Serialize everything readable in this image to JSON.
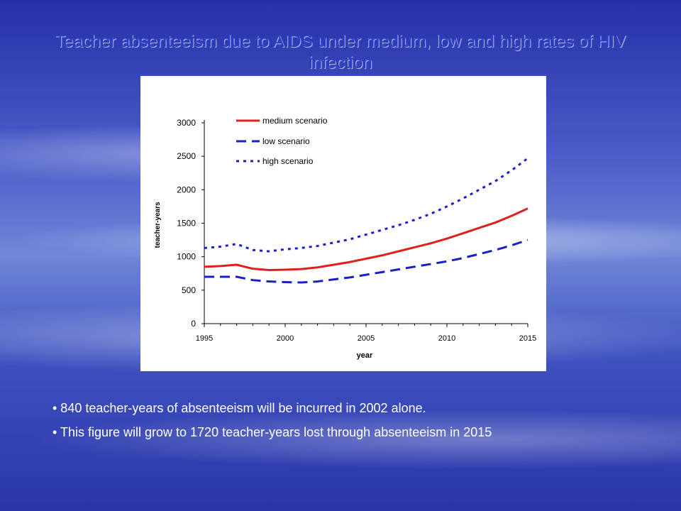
{
  "slide": {
    "title": "Teacher absenteeism due to AIDS under medium, low and high rates of HIV infection",
    "bullets": [
      "• 840 teacher-years of absenteeism will be incurred in 2002 alone.",
      "• This figure will grow to 1720 teacher-years lost through absenteeism in 2015"
    ]
  },
  "chart_data": {
    "type": "line",
    "title": "",
    "xlabel": "year",
    "ylabel": "teacher-years",
    "xlim": [
      1995,
      2015
    ],
    "ylim": [
      0,
      3000
    ],
    "x_ticks": [
      1995,
      2000,
      2005,
      2010,
      2015
    ],
    "y_ticks": [
      0,
      500,
      1000,
      1500,
      2000,
      2500,
      3000
    ],
    "legend_position": "top-left",
    "x": [
      1995,
      1996,
      1997,
      1998,
      1999,
      2000,
      2001,
      2002,
      2003,
      2004,
      2005,
      2006,
      2007,
      2008,
      2009,
      2010,
      2011,
      2012,
      2013,
      2014,
      2015
    ],
    "series": [
      {
        "name": "medium scenario",
        "color": "#e0201c",
        "dash": "solid",
        "values": [
          850,
          860,
          880,
          820,
          800,
          805,
          815,
          840,
          880,
          920,
          970,
          1020,
          1080,
          1140,
          1200,
          1270,
          1350,
          1430,
          1510,
          1610,
          1720
        ]
      },
      {
        "name": "low scenario",
        "color": "#1a1fc8",
        "dash": "dashed",
        "values": [
          700,
          700,
          700,
          650,
          630,
          620,
          615,
          630,
          660,
          690,
          730,
          770,
          810,
          850,
          890,
          930,
          980,
          1040,
          1100,
          1170,
          1250
        ]
      },
      {
        "name": "high scenario",
        "color": "#1a1fc8",
        "dash": "dotted",
        "values": [
          1130,
          1150,
          1190,
          1100,
          1080,
          1110,
          1130,
          1160,
          1210,
          1260,
          1330,
          1400,
          1470,
          1550,
          1640,
          1750,
          1870,
          2000,
          2130,
          2290,
          2470
        ]
      }
    ]
  }
}
